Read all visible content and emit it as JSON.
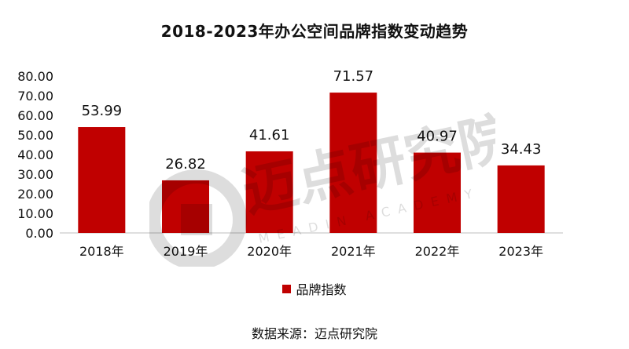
{
  "colors": {
    "bar": "#C00000",
    "axis": "#bfbfbf",
    "text": "#111111"
  },
  "watermark": {
    "cn": "迈点研究院",
    "en": "MEADIN ACADEMY"
  },
  "source_label": "数据来源：迈点研究院",
  "chart_data": {
    "type": "bar",
    "title": "2018-2023年办公空间品牌指数变动趋势",
    "xlabel": "",
    "ylabel": "",
    "categories": [
      "2018年",
      "2019年",
      "2020年",
      "2021年",
      "2022年",
      "2023年"
    ],
    "series": [
      {
        "name": "品牌指数",
        "values": [
          53.99,
          26.82,
          41.61,
          71.57,
          40.97,
          34.43
        ]
      }
    ],
    "data_labels": [
      "53.99",
      "26.82",
      "41.61",
      "71.57",
      "40.97",
      "34.43"
    ],
    "ylim": [
      0,
      80
    ],
    "yticks": [
      "0.00",
      "10.00",
      "20.00",
      "30.00",
      "40.00",
      "50.00",
      "60.00",
      "70.00",
      "80.00"
    ],
    "grid": false,
    "legend_position": "bottom"
  }
}
